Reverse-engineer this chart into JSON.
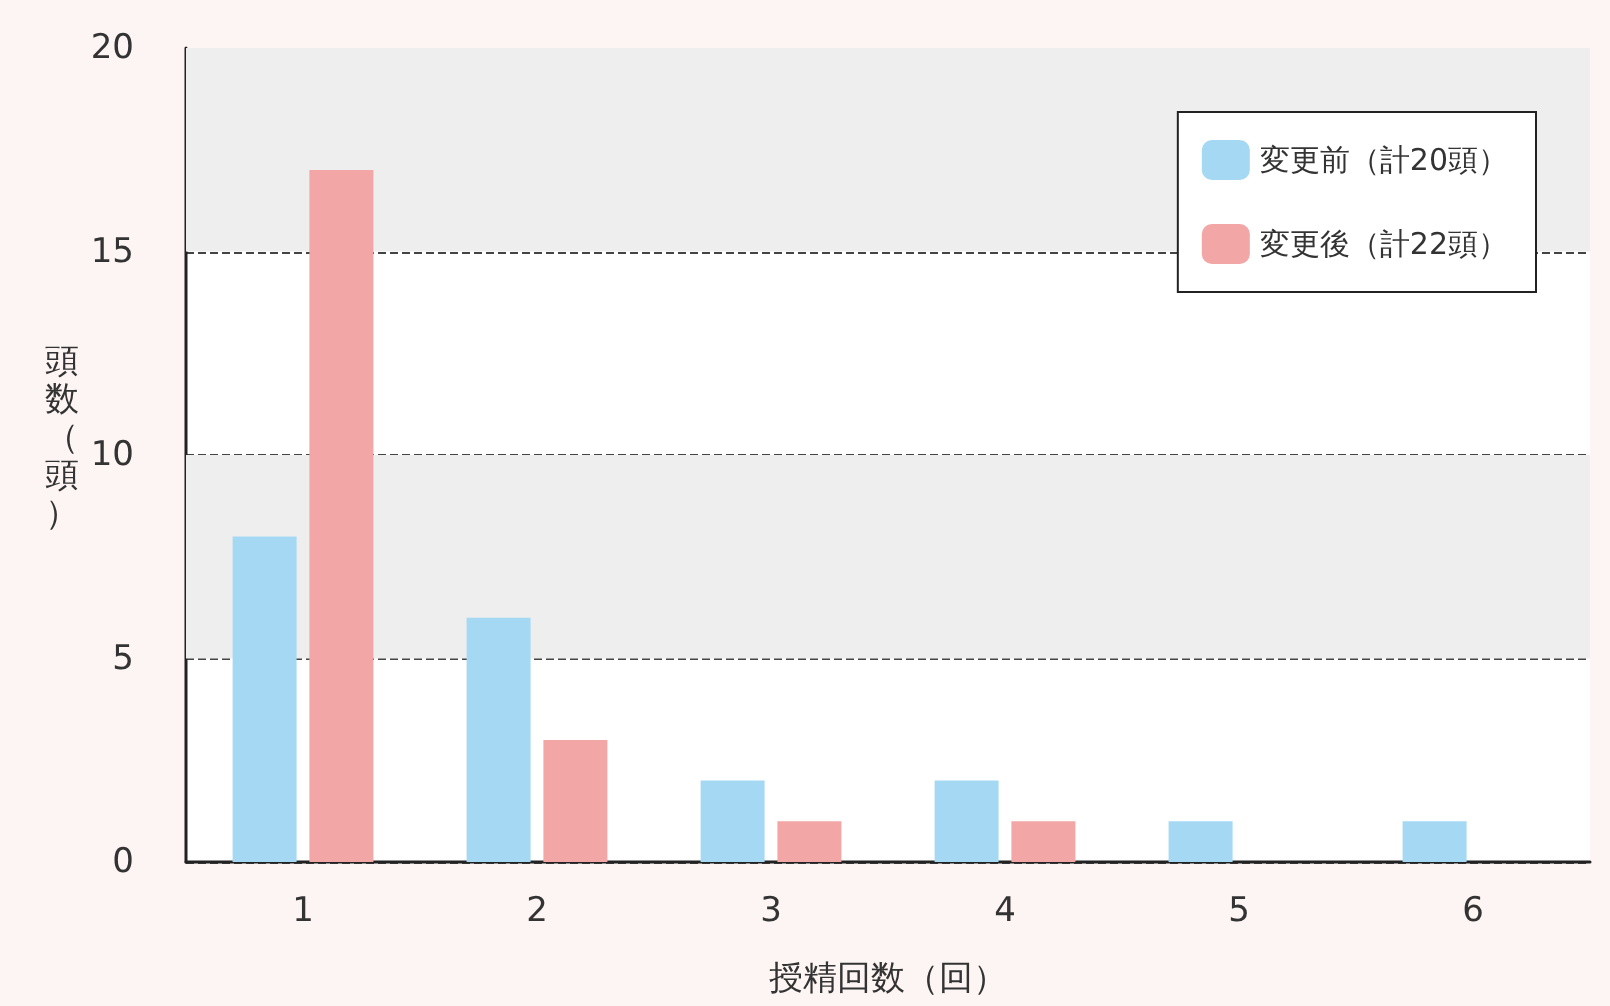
{
  "chart_data": {
    "type": "bar",
    "xlabel": "授精回数（回）",
    "ylabel": "頭数（頭）",
    "categories": [
      "1",
      "2",
      "3",
      "4",
      "5",
      "6"
    ],
    "series": [
      {
        "name": "変更前（計20頭）",
        "color": "#a5d9f3",
        "values": [
          8,
          6,
          2,
          2,
          1,
          1
        ]
      },
      {
        "name": "変更後（計22頭）",
        "color": "#f2a6a6",
        "values": [
          17,
          3,
          1,
          1,
          0,
          0
        ]
      }
    ],
    "ylim": [
      0,
      20
    ],
    "yticks": [
      0,
      5,
      10,
      15,
      20
    ],
    "grid": "y",
    "legend": "top right",
    "bands": [
      {
        "axis": "y",
        "from": 5,
        "to": 10,
        "color": "#eeeeee"
      },
      {
        "axis": "y",
        "from": 15,
        "to": 20,
        "color": "#eeeeee"
      }
    ]
  }
}
